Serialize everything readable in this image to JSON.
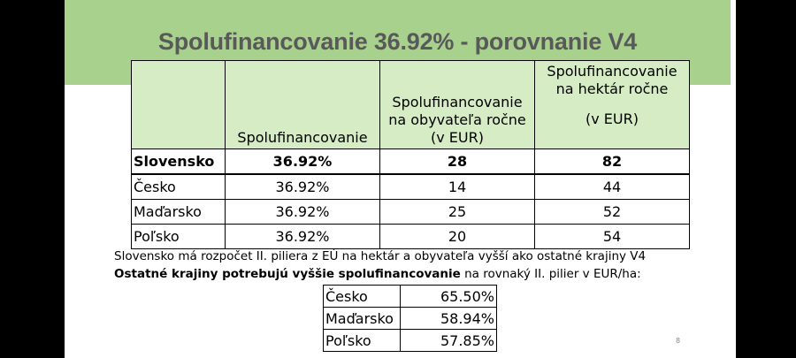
{
  "slide": {
    "title": "Spolufinancovanie 36.92% - porovnanie V4",
    "page_number": "8",
    "colors": {
      "band": "#a9d18e",
      "header_fill": "#d6ecc4",
      "title_text": "#595959"
    }
  },
  "main_table": {
    "headers": [
      "",
      "Spolufinancovanie",
      [
        "Spolufinancovanie",
        "na obyvateľa ročne",
        "(v EUR)"
      ],
      [
        "Spolufinancovanie",
        "na hektár ročne",
        "(v EUR)"
      ]
    ],
    "rows": [
      {
        "country": "Slovensko",
        "rate": "36.92%",
        "per_capita": "28",
        "per_hectare": "82",
        "bold": true
      },
      {
        "country": "Česko",
        "rate": "36.92%",
        "per_capita": "14",
        "per_hectare": "44"
      },
      {
        "country": "Maďarsko",
        "rate": "36.92%",
        "per_capita": "25",
        "per_hectare": "52"
      },
      {
        "country": "Poľsko",
        "rate": "36.92%",
        "per_capita": "20",
        "per_hectare": "54"
      }
    ]
  },
  "notes": {
    "line1": "Slovensko má rozpočet II. piliera z EÚ na hektár a obyvateľa vyšší ako ostatné krajiny V4",
    "line2_bold": "Ostatné krajiny potrebujú vyššie spolufinancovanie",
    "line2_rest": " na rovnaký II. pilier v EUR/ha:"
  },
  "small_table": {
    "rows": [
      {
        "country": "Česko",
        "value": "65.50%"
      },
      {
        "country": "Maďarsko",
        "value": "58.94%"
      },
      {
        "country": "Poľsko",
        "value": "57.85%"
      }
    ]
  }
}
